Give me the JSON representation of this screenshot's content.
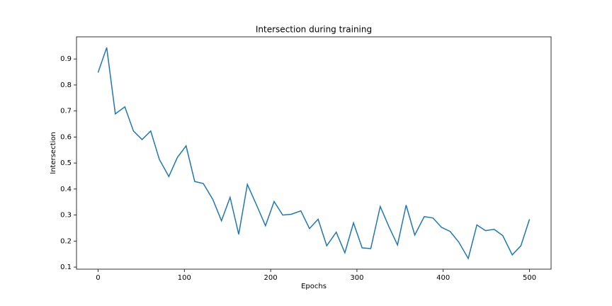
{
  "chart_data": {
    "type": "line",
    "title": "Intersection during training",
    "xlabel": "Epochs",
    "ylabel": "Intersection",
    "x": [
      0,
      10,
      20,
      31,
      41,
      51,
      61,
      71,
      82,
      92,
      102,
      112,
      122,
      133,
      143,
      153,
      163,
      173,
      184,
      194,
      204,
      214,
      224,
      235,
      245,
      255,
      265,
      276,
      286,
      296,
      306,
      316,
      327,
      337,
      347,
      357,
      367,
      378,
      388,
      398,
      408,
      418,
      429,
      439,
      449,
      459,
      469,
      480,
      490,
      500
    ],
    "series": [
      {
        "color": "#1f77b4",
        "values": [
          0.848,
          0.944,
          0.689,
          0.716,
          0.623,
          0.59,
          0.623,
          0.514,
          0.448,
          0.522,
          0.566,
          0.429,
          0.421,
          0.36,
          0.278,
          0.368,
          0.226,
          0.418,
          0.336,
          0.259,
          0.352,
          0.3,
          0.303,
          0.316,
          0.248,
          0.284,
          0.182,
          0.234,
          0.155,
          0.27,
          0.174,
          0.171,
          0.333,
          0.256,
          0.185,
          0.338,
          0.223,
          0.294,
          0.289,
          0.253,
          0.237,
          0.196,
          0.133,
          0.262,
          0.24,
          0.245,
          0.221,
          0.147,
          0.182,
          0.284
        ]
      }
    ],
    "xlim": [
      -25,
      525
    ],
    "ylim": [
      0.092,
      0.985
    ],
    "xticks": [
      0,
      100,
      200,
      300,
      400,
      500
    ],
    "yticks": [
      0.1,
      0.2,
      0.3,
      0.4,
      0.5,
      0.6,
      0.7,
      0.8,
      0.9
    ]
  }
}
